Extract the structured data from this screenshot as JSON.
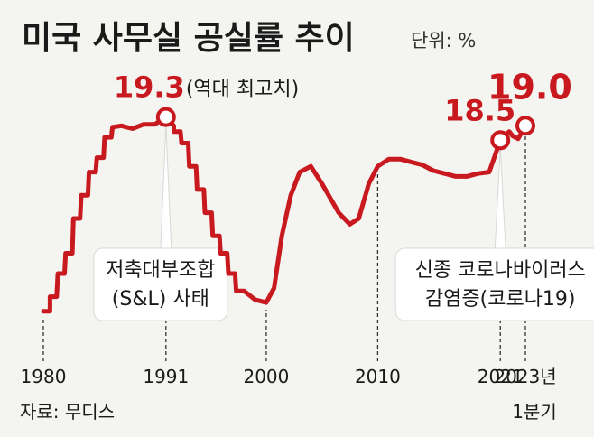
{
  "header": {
    "title": "미국 사무실 공실률 추이",
    "unit": "단위: %"
  },
  "source": "자료: 무디스",
  "colors": {
    "line": "#c8191f",
    "text": "#1a1a1a",
    "background": "#f4f4f1",
    "callout_fill": "#ffffff",
    "dashed": "#333333"
  },
  "chart_data": {
    "type": "line",
    "x_range": [
      1980,
      2023.25
    ],
    "y_range": [
      11.5,
      19.6
    ],
    "x_ticks": [
      {
        "x": 1980,
        "label": "1980"
      },
      {
        "x": 1991,
        "label": "1991"
      },
      {
        "x": 2000,
        "label": "2000"
      },
      {
        "x": 2010,
        "label": "2010"
      },
      {
        "x": 2021,
        "label": "2021"
      },
      {
        "x": 2023.25,
        "label": "2023년",
        "sublabel": "1분기"
      }
    ],
    "points": [
      [
        1980,
        12.6
      ],
      [
        1980.6,
        12.6
      ],
      [
        1980.6,
        13.1
      ],
      [
        1981.2,
        13.1
      ],
      [
        1981.3,
        13.9
      ],
      [
        1981.9,
        13.9
      ],
      [
        1982,
        14.6
      ],
      [
        1982.6,
        14.6
      ],
      [
        1982.7,
        15.8
      ],
      [
        1983.3,
        15.8
      ],
      [
        1983.4,
        16.6
      ],
      [
        1984,
        16.6
      ],
      [
        1984.1,
        17.4
      ],
      [
        1984.7,
        17.4
      ],
      [
        1984.8,
        17.9
      ],
      [
        1985.4,
        17.9
      ],
      [
        1985.5,
        18.6
      ],
      [
        1986.1,
        18.6
      ],
      [
        1986.2,
        18.95
      ],
      [
        1987,
        19.0
      ],
      [
        1988,
        18.9
      ],
      [
        1989,
        19.05
      ],
      [
        1990,
        19.05
      ],
      [
        1991,
        19.3
      ],
      [
        1991.7,
        19.0
      ],
      [
        1991.7,
        18.8
      ],
      [
        1992.3,
        18.8
      ],
      [
        1992.4,
        18.4
      ],
      [
        1993,
        18.4
      ],
      [
        1993.1,
        17.6
      ],
      [
        1993.7,
        17.6
      ],
      [
        1993.8,
        16.8
      ],
      [
        1994.4,
        16.8
      ],
      [
        1994.5,
        16.0
      ],
      [
        1995.1,
        16.0
      ],
      [
        1995.2,
        15.2
      ],
      [
        1995.8,
        15.2
      ],
      [
        1995.9,
        14.6
      ],
      [
        1996.5,
        14.6
      ],
      [
        1996.6,
        13.9
      ],
      [
        1997.2,
        13.9
      ],
      [
        1997.3,
        13.3
      ],
      [
        1998,
        13.3
      ],
      [
        1999,
        13.0
      ],
      [
        2000,
        12.9
      ],
      [
        2000.7,
        13.4
      ],
      [
        2001.4,
        15.2
      ],
      [
        2002.2,
        16.6
      ],
      [
        2003,
        17.4
      ],
      [
        2004,
        17.6
      ],
      [
        2005,
        17.0
      ],
      [
        2006.5,
        16.0
      ],
      [
        2007.5,
        15.6
      ],
      [
        2008.3,
        15.8
      ],
      [
        2009.2,
        17.0
      ],
      [
        2010,
        17.6
      ],
      [
        2011,
        17.85
      ],
      [
        2012,
        17.85
      ],
      [
        2013,
        17.75
      ],
      [
        2014,
        17.65
      ],
      [
        2015,
        17.45
      ],
      [
        2016,
        17.35
      ],
      [
        2017,
        17.25
      ],
      [
        2018,
        17.25
      ],
      [
        2019,
        17.35
      ],
      [
        2020,
        17.4
      ],
      [
        2021,
        18.5
      ],
      [
        2021.8,
        18.8
      ],
      [
        2022.1,
        18.65
      ],
      [
        2022.6,
        18.55
      ],
      [
        2023.25,
        19.0
      ]
    ],
    "markers": [
      {
        "x": 1991,
        "y": 19.3,
        "label": "19.3",
        "note": "(역대 최고치)"
      },
      {
        "x": 2021,
        "y": 18.5,
        "label": "18.5"
      },
      {
        "x": 2023.25,
        "y": 19.0,
        "label": "19.0"
      }
    ],
    "callouts": [
      {
        "x": 1991,
        "lines": [
          "저축대부조합",
          "(S&L) 사태"
        ]
      },
      {
        "x": 2021,
        "lines": [
          "신종 코로나바이러스",
          "감염증(코로나19)"
        ]
      }
    ]
  }
}
